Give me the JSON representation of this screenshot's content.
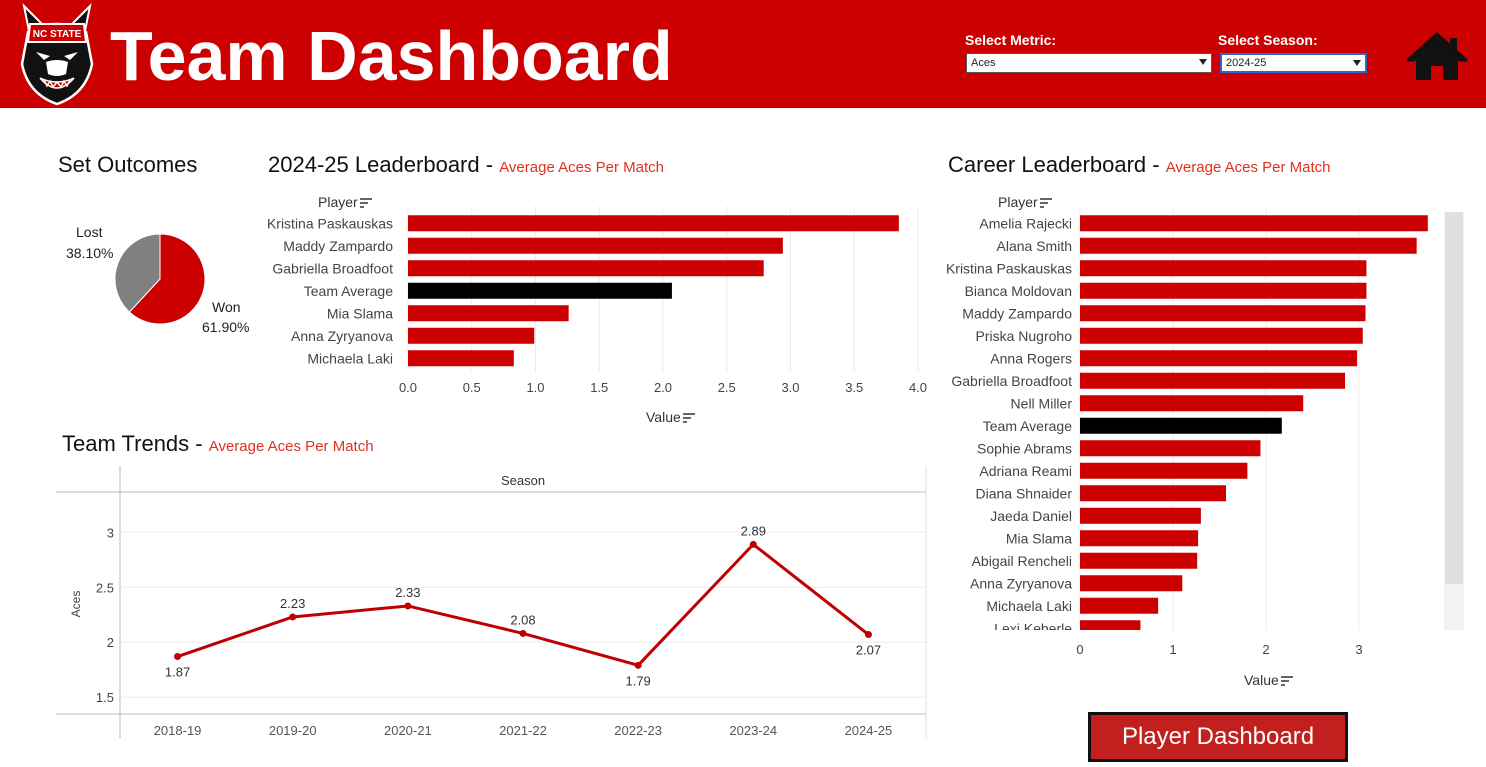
{
  "header": {
    "title": "Team Dashboard",
    "logo_text": "NC STATE",
    "metric_label": "Select Metric:",
    "metric_value": "Aces",
    "season_label": "Select Season:",
    "season_value": "2024-25"
  },
  "colors": {
    "brand_red": "#cc0000",
    "bar_red": "#cc0000",
    "team_avg": "#000000",
    "pie_lost": "#808080",
    "line": "#c00000",
    "subtitle": "#e0301e"
  },
  "set_outcomes": {
    "title": "Set Outcomes",
    "lost_label": "Lost",
    "lost_pct": "38.10%",
    "won_label": "Won",
    "won_pct": "61.90%"
  },
  "season_leaderboard": {
    "title": "2024-25 Leaderboard",
    "subtitle": "Average Aces Per Match",
    "axis_title": "Player",
    "value_title": "Value"
  },
  "career_leaderboard": {
    "title": "Career Leaderboard",
    "subtitle": "Average Aces Per Match",
    "axis_title": "Player",
    "value_title": "Value"
  },
  "trends": {
    "title": "Team Trends",
    "subtitle": "Average Aces Per Match",
    "column_header": "Season",
    "y_title": "Aces"
  },
  "player_dashboard_button": "Player Dashboard",
  "icons": {
    "home": "home-icon",
    "sort": "sort-icon",
    "dropdown": "chevron-down-icon"
  },
  "chart_data": [
    {
      "type": "pie",
      "categories": [
        "Won",
        "Lost"
      ],
      "values": [
        61.9,
        38.1
      ],
      "title": "Set Outcomes"
    },
    {
      "type": "bar",
      "orientation": "horizontal",
      "title": "2024-25 Leaderboard",
      "subtitle": "Average Aces Per Match",
      "categories": [
        "Kristina Paskauskas",
        "Maddy Zampardo",
        "Gabriella Broadfoot",
        "Team Average",
        "Mia Slama",
        "Anna Zyryanova",
        "Michaela Laki"
      ],
      "values": [
        3.85,
        2.94,
        2.79,
        2.07,
        1.26,
        0.99,
        0.83
      ],
      "highlight": "Team Average",
      "xlabel": "Value",
      "ylabel": "Player",
      "xlim": [
        0,
        4.0
      ],
      "ticks": [
        "0.0",
        "0.5",
        "1.0",
        "1.5",
        "2.0",
        "2.5",
        "3.0",
        "3.5",
        "4.0"
      ],
      "tick_values": [
        0,
        0.5,
        1.0,
        1.5,
        2.0,
        2.5,
        3.0,
        3.5,
        4.0
      ],
      "grid": true
    },
    {
      "type": "bar",
      "orientation": "horizontal",
      "title": "Career Leaderboard",
      "subtitle": "Average Aces Per Match",
      "categories": [
        "Amelia Rajecki",
        "Alana Smith",
        "Kristina Paskauskas",
        "Bianca Moldovan",
        "Maddy Zampardo",
        "Priska Nugroho",
        "Anna Rogers",
        "Gabriella Broadfoot",
        "Nell Miller",
        "Team Average",
        "Sophie Abrams",
        "Adriana Reami",
        "Diana Shnaider",
        "Jaeda Daniel",
        "Mia Slama",
        "Abigail Rencheli",
        "Anna Zyryanova",
        "Michaela Laki",
        "Lexi Keberle"
      ],
      "values": [
        3.74,
        3.62,
        3.08,
        3.08,
        3.07,
        3.04,
        2.98,
        2.85,
        2.4,
        2.17,
        1.94,
        1.8,
        1.57,
        1.3,
        1.27,
        1.26,
        1.1,
        0.84,
        0.65
      ],
      "highlight": "Team Average",
      "xlabel": "Value",
      "ylabel": "Player",
      "xlim": [
        0,
        4.0
      ],
      "ticks": [
        "0",
        "1",
        "2",
        "3"
      ],
      "tick_values": [
        0,
        1,
        2,
        3
      ],
      "grid": true
    },
    {
      "type": "line",
      "title": "Team Trends",
      "subtitle": "Average Aces Per Match",
      "x": [
        "2018-19",
        "2019-20",
        "2020-21",
        "2021-22",
        "2022-23",
        "2023-24",
        "2024-25"
      ],
      "values": [
        1.87,
        2.23,
        2.33,
        2.08,
        1.79,
        2.89,
        2.07
      ],
      "labels": [
        "1.87",
        "2.23",
        "2.33",
        "2.08",
        "1.79",
        "2.89",
        "2.07"
      ],
      "ylabel": "Aces",
      "xlabel": "Season",
      "ylim": [
        1.42,
        3.13
      ],
      "ticks": [
        "1.5",
        "2",
        "2.5",
        "3"
      ],
      "tick_values": [
        1.5,
        2,
        2.5,
        3
      ],
      "grid": true
    }
  ]
}
